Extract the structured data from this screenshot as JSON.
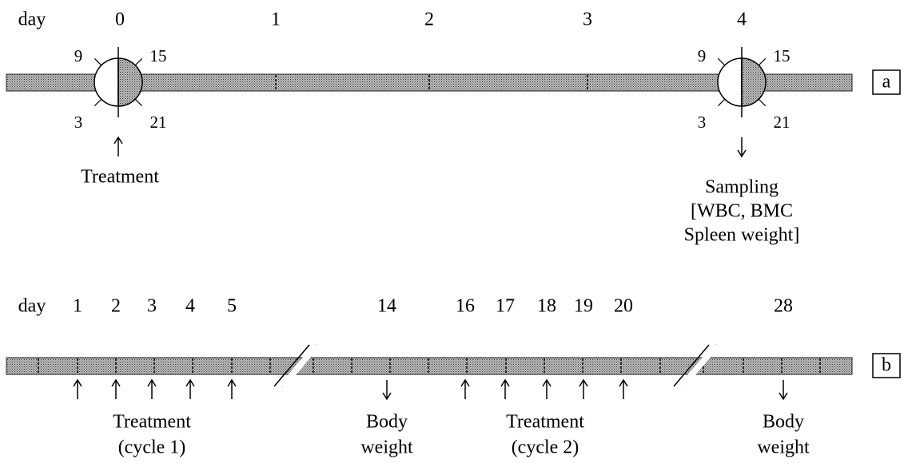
{
  "panel_a": {
    "day_label": "day",
    "days": [
      "0",
      "1",
      "2",
      "3",
      "4"
    ],
    "clocks": [
      {
        "labels": [
          "9",
          "15",
          "3",
          "21"
        ]
      },
      {
        "labels": [
          "9",
          "15",
          "3",
          "21"
        ]
      }
    ],
    "events": [
      {
        "lines": [
          "Treatment"
        ]
      },
      {
        "lines": [
          "Sampling",
          "[WBC, BMC",
          "Spleen weight]"
        ]
      }
    ],
    "panel_label": "a"
  },
  "panel_b": {
    "day_label": "day",
    "days": [
      "1",
      "2",
      "3",
      "4",
      "5",
      "14",
      "16",
      "17",
      "18",
      "19",
      "20",
      "28"
    ],
    "events": [
      {
        "lines": [
          "Treatment",
          "(cycle 1)"
        ]
      },
      {
        "lines": [
          "Body",
          "weight"
        ]
      },
      {
        "lines": [
          "Treatment",
          "(cycle 2)"
        ]
      },
      {
        "lines": [
          "Body",
          "weight"
        ]
      }
    ],
    "panel_label": "b"
  }
}
